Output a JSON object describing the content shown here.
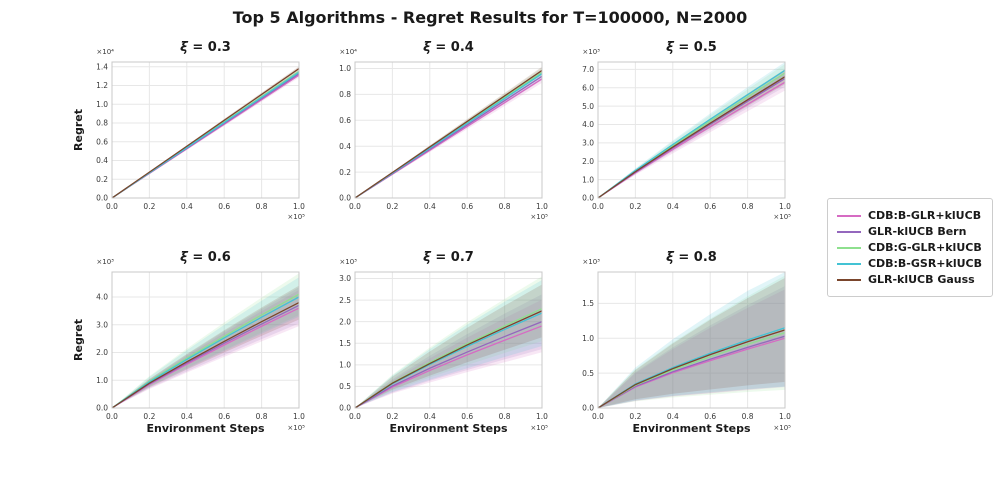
{
  "figure": {
    "title": "Top 5 Algorithms - Regret Results for T=100000, N=2000",
    "background": "#ffffff"
  },
  "legend": {
    "position": "center-right",
    "items": [
      {
        "label": "CDB:B-GLR+klUCB",
        "color": "#d66bc3"
      },
      {
        "label": "GLR-klUCB Bern",
        "color": "#9467bd"
      },
      {
        "label": "CDB:G-GLR+klUCB",
        "color": "#8ee08e"
      },
      {
        "label": "CDB:B-GSR+klUCB",
        "color": "#43c3d4"
      },
      {
        "label": "GLR-klUCB Gauss",
        "color": "#7a452c"
      }
    ]
  },
  "chart_data": [
    {
      "type": "line",
      "title": "ξ = 0.3",
      "xlabel": "",
      "ylabel": "Regret",
      "grid": true,
      "band_opacity": 0.16,
      "x": [
        0,
        20000,
        40000,
        60000,
        80000,
        100000
      ],
      "xlim": [
        0,
        100000
      ],
      "ylim": [
        0,
        14500
      ],
      "xticks": {
        "values": [
          0,
          20000,
          40000,
          60000,
          80000,
          100000
        ],
        "labels": [
          "0.0",
          "0.2",
          "0.4",
          "0.6",
          "0.8",
          "1.0"
        ]
      },
      "yticks": {
        "values": [
          0,
          2000,
          4000,
          6000,
          8000,
          10000,
          12000,
          14000
        ],
        "labels": [
          "0.0",
          "0.2",
          "0.4",
          "0.6",
          "0.8",
          "1.0",
          "1.2",
          "1.4"
        ]
      },
      "x_offset_label": "×10⁵",
      "y_offset_label": "×10⁴",
      "series": [
        {
          "name": "CDB:B-GLR+klUCB",
          "values": [
            0,
            2620,
            5240,
            7860,
            10480,
            13100
          ],
          "band": [
            0,
            60,
            120,
            170,
            210,
            250
          ]
        },
        {
          "name": "GLR-klUCB Bern",
          "values": [
            0,
            2650,
            5300,
            7950,
            10600,
            13250
          ],
          "band": [
            0,
            60,
            120,
            170,
            210,
            250
          ]
        },
        {
          "name": "CDB:G-GLR+klUCB",
          "values": [
            0,
            2700,
            5400,
            8100,
            10800,
            13500
          ],
          "band": [
            0,
            70,
            140,
            200,
            260,
            320
          ]
        },
        {
          "name": "CDB:B-GSR+klUCB",
          "values": [
            0,
            2680,
            5360,
            8040,
            10720,
            13400
          ],
          "band": [
            0,
            60,
            120,
            170,
            210,
            250
          ]
        },
        {
          "name": "GLR-klUCB Gauss",
          "values": [
            0,
            2760,
            5520,
            8280,
            11040,
            13800
          ],
          "band": [
            0,
            50,
            100,
            150,
            200,
            240
          ]
        }
      ]
    },
    {
      "type": "line",
      "title": "ξ = 0.4",
      "xlabel": "",
      "ylabel": "",
      "grid": true,
      "band_opacity": 0.16,
      "x": [
        0,
        20000,
        40000,
        60000,
        80000,
        100000
      ],
      "xlim": [
        0,
        100000
      ],
      "ylim": [
        0,
        10500
      ],
      "xticks": {
        "values": [
          0,
          20000,
          40000,
          60000,
          80000,
          100000
        ],
        "labels": [
          "0.0",
          "0.2",
          "0.4",
          "0.6",
          "0.8",
          "1.0"
        ]
      },
      "yticks": {
        "values": [
          0,
          2000,
          4000,
          6000,
          8000,
          10000
        ],
        "labels": [
          "0.0",
          "0.2",
          "0.4",
          "0.6",
          "0.8",
          "1.0"
        ]
      },
      "x_offset_label": "×10⁵",
      "y_offset_label": "×10⁴",
      "series": [
        {
          "name": "CDB:B-GLR+klUCB",
          "values": [
            0,
            1840,
            3680,
            5520,
            7360,
            9200
          ],
          "band": [
            0,
            70,
            140,
            200,
            255,
            300
          ]
        },
        {
          "name": "GLR-klUCB Bern",
          "values": [
            0,
            1880,
            3760,
            5640,
            7520,
            9400
          ],
          "band": [
            0,
            70,
            140,
            200,
            255,
            300
          ]
        },
        {
          "name": "CDB:G-GLR+klUCB",
          "values": [
            0,
            1940,
            3880,
            5820,
            7760,
            9700
          ],
          "band": [
            0,
            80,
            160,
            230,
            290,
            350
          ]
        },
        {
          "name": "CDB:B-GSR+klUCB",
          "values": [
            0,
            1920,
            3840,
            5760,
            7680,
            9600
          ],
          "band": [
            0,
            70,
            140,
            200,
            255,
            300
          ]
        },
        {
          "name": "GLR-klUCB Gauss",
          "values": [
            0,
            1970,
            3940,
            5910,
            7880,
            9850
          ],
          "band": [
            0,
            60,
            120,
            180,
            230,
            280
          ]
        }
      ]
    },
    {
      "type": "line",
      "title": "ξ = 0.5",
      "xlabel": "",
      "ylabel": "",
      "grid": true,
      "band_opacity": 0.16,
      "x": [
        0,
        20000,
        40000,
        60000,
        80000,
        100000
      ],
      "xlim": [
        0,
        100000
      ],
      "ylim": [
        0,
        7400
      ],
      "xticks": {
        "values": [
          0,
          20000,
          40000,
          60000,
          80000,
          100000
        ],
        "labels": [
          "0.0",
          "0.2",
          "0.4",
          "0.6",
          "0.8",
          "1.0"
        ]
      },
      "yticks": {
        "values": [
          0,
          1000,
          2000,
          3000,
          4000,
          5000,
          6000,
          7000
        ],
        "labels": [
          "0.0",
          "1.0",
          "2.0",
          "3.0",
          "4.0",
          "5.0",
          "6.0",
          "7.0"
        ]
      },
      "x_offset_label": "×10⁵",
      "y_offset_label": "×10³",
      "series": [
        {
          "name": "CDB:B-GLR+klUCB",
          "values": [
            0,
            1360,
            2640,
            3880,
            5100,
            6300
          ],
          "band": [
            0,
            110,
            210,
            300,
            380,
            450
          ]
        },
        {
          "name": "GLR-klUCB Bern",
          "values": [
            0,
            1400,
            2720,
            4000,
            5260,
            6500
          ],
          "band": [
            0,
            100,
            200,
            290,
            370,
            440
          ]
        },
        {
          "name": "CDB:G-GLR+klUCB",
          "values": [
            0,
            1470,
            2850,
            4190,
            5500,
            6800
          ],
          "band": [
            0,
            110,
            220,
            320,
            410,
            490
          ]
        },
        {
          "name": "CDB:B-GSR+klUCB",
          "values": [
            0,
            1500,
            2910,
            4280,
            5620,
            6950
          ],
          "band": [
            0,
            110,
            220,
            320,
            410,
            490
          ]
        },
        {
          "name": "GLR-klUCB Gauss",
          "values": [
            0,
            1430,
            2770,
            4070,
            5340,
            6600
          ],
          "band": [
            0,
            90,
            180,
            260,
            340,
            410
          ]
        }
      ]
    },
    {
      "type": "line",
      "title": "ξ = 0.6",
      "xlabel": "Environment Steps",
      "ylabel": "Regret",
      "grid": true,
      "band_opacity": 0.16,
      "x": [
        0,
        20000,
        40000,
        60000,
        80000,
        100000
      ],
      "xlim": [
        0,
        100000
      ],
      "ylim": [
        0,
        4900
      ],
      "xticks": {
        "values": [
          0,
          20000,
          40000,
          60000,
          80000,
          100000
        ],
        "labels": [
          "0.0",
          "0.2",
          "0.4",
          "0.6",
          "0.8",
          "1.0"
        ]
      },
      "yticks": {
        "values": [
          0,
          1000,
          2000,
          3000,
          4000
        ],
        "labels": [
          "0.0",
          "1.0",
          "2.0",
          "3.0",
          "4.0"
        ]
      },
      "x_offset_label": "×10⁵",
      "y_offset_label": "×10³",
      "series": [
        {
          "name": "CDB:B-GLR+klUCB",
          "values": [
            0,
            845,
            1575,
            2270,
            2945,
            3600
          ],
          "band": [
            0,
            160,
            300,
            430,
            545,
            650
          ]
        },
        {
          "name": "GLR-klUCB Bern",
          "values": [
            0,
            870,
            1620,
            2335,
            3025,
            3700
          ],
          "band": [
            0,
            160,
            300,
            430,
            545,
            650
          ]
        },
        {
          "name": "CDB:G-GLR+klUCB",
          "values": [
            0,
            965,
            1795,
            2585,
            3355,
            4100
          ],
          "band": [
            0,
            185,
            345,
            495,
            625,
            750
          ]
        },
        {
          "name": "CDB:B-GSR+klUCB",
          "values": [
            0,
            940,
            1750,
            2525,
            3270,
            4000
          ],
          "band": [
            0,
            175,
            330,
            470,
            595,
            710
          ]
        },
        {
          "name": "GLR-klUCB Gauss",
          "values": [
            0,
            895,
            1665,
            2400,
            3110,
            3800
          ],
          "band": [
            0,
            150,
            280,
            400,
            510,
            610
          ]
        }
      ]
    },
    {
      "type": "line",
      "title": "ξ = 0.7",
      "xlabel": "Environment Steps",
      "ylabel": "",
      "grid": true,
      "band_opacity": 0.16,
      "x": [
        0,
        20000,
        40000,
        60000,
        80000,
        100000
      ],
      "xlim": [
        0,
        100000
      ],
      "ylim": [
        0,
        3150
      ],
      "xticks": {
        "values": [
          0,
          20000,
          40000,
          60000,
          80000,
          100000
        ],
        "labels": [
          "0.0",
          "0.2",
          "0.4",
          "0.6",
          "0.8",
          "1.0"
        ]
      },
      "yticks": {
        "values": [
          0,
          500,
          1000,
          1500,
          2000,
          2500,
          3000
        ],
        "labels": [
          "0.0",
          "0.5",
          "1.0",
          "1.5",
          "2.0",
          "2.5",
          "3.0"
        ]
      },
      "x_offset_label": "×10⁵",
      "y_offset_label": "×10³",
      "series": [
        {
          "name": "CDB:B-GLR+klUCB",
          "values": [
            0,
            485,
            870,
            1230,
            1570,
            1900
          ],
          "band": [
            0,
            150,
            280,
            400,
            510,
            610
          ]
        },
        {
          "name": "GLR-klUCB Bern",
          "values": [
            0,
            510,
            920,
            1295,
            1655,
            2000
          ],
          "band": [
            0,
            155,
            290,
            415,
            530,
            635
          ]
        },
        {
          "name": "CDB:G-GLR+klUCB",
          "values": [
            0,
            585,
            1055,
            1490,
            1900,
            2300
          ],
          "band": [
            0,
            185,
            345,
            495,
            625,
            750
          ]
        },
        {
          "name": "CDB:B-GSR+klUCB",
          "values": [
            0,
            560,
            1010,
            1425,
            1820,
            2200
          ],
          "band": [
            0,
            190,
            355,
            505,
            640,
            765
          ]
        },
        {
          "name": "GLR-klUCB Gauss",
          "values": [
            0,
            575,
            1030,
            1460,
            1860,
            2250
          ],
          "band": [
            0,
            150,
            280,
            400,
            510,
            610
          ]
        }
      ]
    },
    {
      "type": "line",
      "title": "ξ = 0.8",
      "xlabel": "Environment Steps",
      "ylabel": "",
      "grid": true,
      "band_opacity": 0.16,
      "x": [
        0,
        20000,
        40000,
        60000,
        80000,
        100000
      ],
      "xlim": [
        0,
        100000
      ],
      "ylim": [
        0,
        1950
      ],
      "xticks": {
        "values": [
          0,
          20000,
          40000,
          60000,
          80000,
          100000
        ],
        "labels": [
          "0.0",
          "0.2",
          "0.4",
          "0.6",
          "0.8",
          "1.0"
        ]
      },
      "yticks": {
        "values": [
          0,
          500,
          1000,
          1500
        ],
        "labels": [
          "0.0",
          "0.5",
          "1.0",
          "1.5"
        ]
      },
      "x_offset_label": "×10⁵",
      "y_offset_label": "×10³",
      "series": [
        {
          "name": "CDB:B-GLR+klUCB",
          "values": [
            0,
            300,
            505,
            680,
            845,
            1000
          ],
          "band": [
            0,
            200,
            340,
            470,
            590,
            700
          ]
        },
        {
          "name": "GLR-klUCB Bern",
          "values": [
            0,
            310,
            520,
            700,
            870,
            1030
          ],
          "band": [
            0,
            205,
            350,
            485,
            605,
            720
          ]
        },
        {
          "name": "CDB:G-GLR+klUCB",
          "values": [
            0,
            325,
            545,
            735,
            915,
            1080
          ],
          "band": [
            0,
            230,
            395,
            545,
            685,
            820
          ]
        },
        {
          "name": "CDB:B-GSR+klUCB",
          "values": [
            0,
            345,
            580,
            785,
            975,
            1150
          ],
          "band": [
            0,
            235,
            405,
            560,
            705,
            845
          ]
        },
        {
          "name": "GLR-klUCB Gauss",
          "values": [
            0,
            335,
            565,
            765,
            950,
            1120
          ],
          "band": [
            0,
            210,
            360,
            500,
            625,
            745
          ]
        }
      ]
    }
  ]
}
